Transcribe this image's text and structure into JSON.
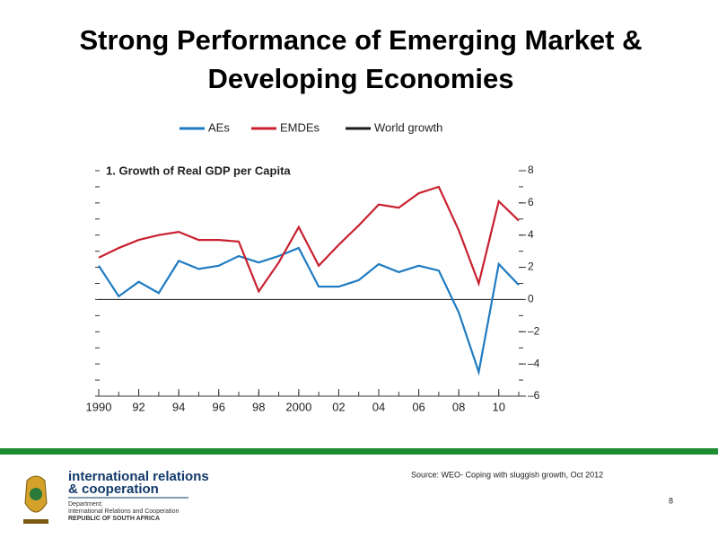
{
  "slide": {
    "title_lines": [
      "Strong Performance of Emerging Market &",
      "Developing Economies"
    ],
    "source": "Source: WEO- Coping with sluggish growth, Oct 2012",
    "page_number": "8",
    "logo": {
      "line1": "international relations",
      "line2": "& cooperation",
      "dept": "Department:",
      "dept_name": "International Relations and Cooperation",
      "country": "REPUBLIC OF SOUTH AFRICA"
    }
  },
  "chart_data": {
    "type": "line",
    "title": "1. Growth of Real GDP per Capita",
    "x": [
      1990,
      1991,
      1992,
      1993,
      1994,
      1995,
      1996,
      1997,
      1998,
      1999,
      2000,
      2001,
      2002,
      2003,
      2004,
      2005,
      2006,
      2007,
      2008,
      2009,
      2010,
      2011
    ],
    "series": [
      {
        "name": "AEs",
        "color": "#1f7bc1",
        "values": [
          2.1,
          0.2,
          1.1,
          0.4,
          2.4,
          1.9,
          2.1,
          2.7,
          2.3,
          2.7,
          3.2,
          0.8,
          0.8,
          1.2,
          2.2,
          1.7,
          2.1,
          1.8,
          -0.8,
          -4.5,
          2.2,
          0.9
        ]
      },
      {
        "name": "EMDEs",
        "color": "#c8202f",
        "values": [
          2.6,
          3.2,
          3.7,
          4.0,
          4.2,
          3.7,
          3.7,
          3.6,
          0.5,
          2.3,
          4.5,
          2.1,
          3.4,
          4.6,
          5.9,
          5.7,
          6.6,
          7.0,
          4.3,
          1.0,
          6.1,
          4.9
        ]
      },
      {
        "name": "World growth",
        "color": "#1a1a1a",
        "values": [
          null,
          null,
          null,
          null,
          null,
          null,
          null,
          null,
          null,
          null,
          null,
          null,
          null,
          null,
          null,
          null,
          null,
          null,
          null,
          null,
          null,
          null
        ]
      }
    ],
    "xlim": [
      1990,
      2011
    ],
    "xticks": [
      1990,
      {
        "value": 1992,
        "label": "92"
      },
      {
        "value": 1994,
        "label": "94"
      },
      {
        "value": 1996,
        "label": "96"
      },
      {
        "value": 1998,
        "label": "98"
      },
      2000,
      {
        "value": 2002,
        "label": "02"
      },
      {
        "value": 2004,
        "label": "04"
      },
      {
        "value": 2006,
        "label": "06"
      },
      {
        "value": 2008,
        "label": "08"
      },
      {
        "value": 2010,
        "label": "10"
      }
    ],
    "ylim": [
      -6,
      8
    ],
    "yticks": [
      8,
      6,
      4,
      2,
      0,
      {
        "value": -2,
        "label": "–2"
      },
      {
        "value": -4,
        "label": "–4"
      },
      {
        "value": -6,
        "label": "–6"
      }
    ],
    "legend": "top"
  }
}
